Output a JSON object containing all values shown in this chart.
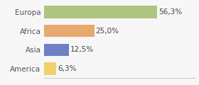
{
  "categories": [
    "Europa",
    "Africa",
    "Asia",
    "America"
  ],
  "values": [
    56.3,
    25.0,
    12.5,
    6.3
  ],
  "labels": [
    "56,3%",
    "25,0%",
    "12,5%",
    "6,3%"
  ],
  "bar_colors": [
    "#adc57e",
    "#e8a96e",
    "#6e7fc4",
    "#f0d06a"
  ],
  "background_color": "#f7f7f7",
  "xlim": [
    0,
    75
  ],
  "bar_height": 0.65,
  "label_fontsize": 7.5,
  "tick_fontsize": 7.5,
  "spine_color": "#cccccc"
}
